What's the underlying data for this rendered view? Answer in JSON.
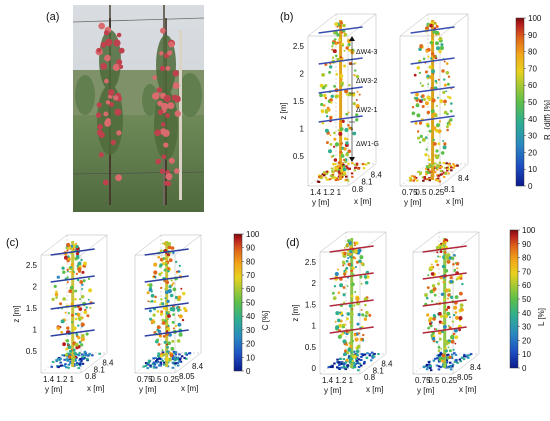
{
  "panel_a": {
    "label": "(a)"
  },
  "panel_b": {
    "label": "(b)",
    "z_axis_label": "z [m]",
    "z_ticks": [
      "0.5",
      "1",
      "1.5",
      "2",
      "2.5"
    ],
    "left_plot": {
      "y_axis_label": "y [m]",
      "x_axis_label": "x [m]",
      "y_ticks": [
        "1.4",
        "1.2",
        "1"
      ],
      "x_ticks": [
        "0.8",
        "8.1",
        "8.4"
      ]
    },
    "right_plot": {
      "y_axis_label": "y [m]",
      "x_axis_label": "x [m]",
      "y_ticks": [
        "0.75",
        "0.5",
        "0.25"
      ],
      "x_ticks": [
        "8.1",
        "8.4"
      ]
    },
    "deltas": [
      "ΔW4-3",
      "ΔW3-2",
      "ΔW2-1",
      "ΔW1-G"
    ],
    "colorbar": {
      "label": "R_{diff} [%]",
      "ticks": [
        "0",
        "10",
        "20",
        "30",
        "40",
        "50",
        "60",
        "70",
        "80",
        "90",
        "100"
      ]
    }
  },
  "panel_c": {
    "label": "(c)",
    "z_axis_label": "z [m]",
    "z_ticks": [
      "0.5",
      "1",
      "1.5",
      "2",
      "2.5"
    ],
    "left_plot": {
      "y_axis_label": "y [m]",
      "x_axis_label": "x [m]",
      "y_ticks": [
        "1.4",
        "1.2",
        "1"
      ],
      "x_ticks": [
        "0.8",
        "8.1",
        "8.4"
      ]
    },
    "right_plot": {
      "y_axis_label": "y [m]",
      "x_axis_label": "x [m]",
      "y_ticks": [
        "0.75",
        "0.5",
        "0.25"
      ],
      "x_ticks": [
        "8.05",
        "8.4"
      ]
    },
    "colorbar": {
      "label": "C [%]",
      "ticks": [
        "0",
        "10",
        "20",
        "30",
        "40",
        "50",
        "60",
        "70",
        "80",
        "90",
        "100"
      ]
    }
  },
  "panel_d": {
    "label": "(d)",
    "z_axis_label": "z [m]",
    "z_ticks": [
      "0",
      "0.5",
      "1",
      "1.5",
      "2",
      "2.5"
    ],
    "left_plot": {
      "y_axis_label": "y [m]",
      "x_axis_label": "x [m]",
      "y_ticks": [
        "1.4",
        "1.2",
        "1"
      ],
      "x_ticks": [
        "0.8",
        "8.1",
        "8.4"
      ]
    },
    "right_plot": {
      "y_axis_label": "y [m]",
      "x_axis_label": "x [m]",
      "y_ticks": [
        "0.75",
        "0.5",
        "0.25"
      ],
      "x_ticks": [
        "8.05",
        "8.4"
      ]
    },
    "colorbar": {
      "label": "L [%]",
      "ticks": [
        "0",
        "10",
        "20",
        "30",
        "40",
        "50",
        "60",
        "70",
        "80",
        "90",
        "100"
      ]
    }
  },
  "colormap": [
    "#0a1a8c",
    "#1d4fc2",
    "#2a8ac0",
    "#2fae8f",
    "#5cbf4a",
    "#a8c932",
    "#e7d21f",
    "#f2a81a",
    "#e0661a",
    "#b81e1e",
    "#7a0c0c"
  ]
}
